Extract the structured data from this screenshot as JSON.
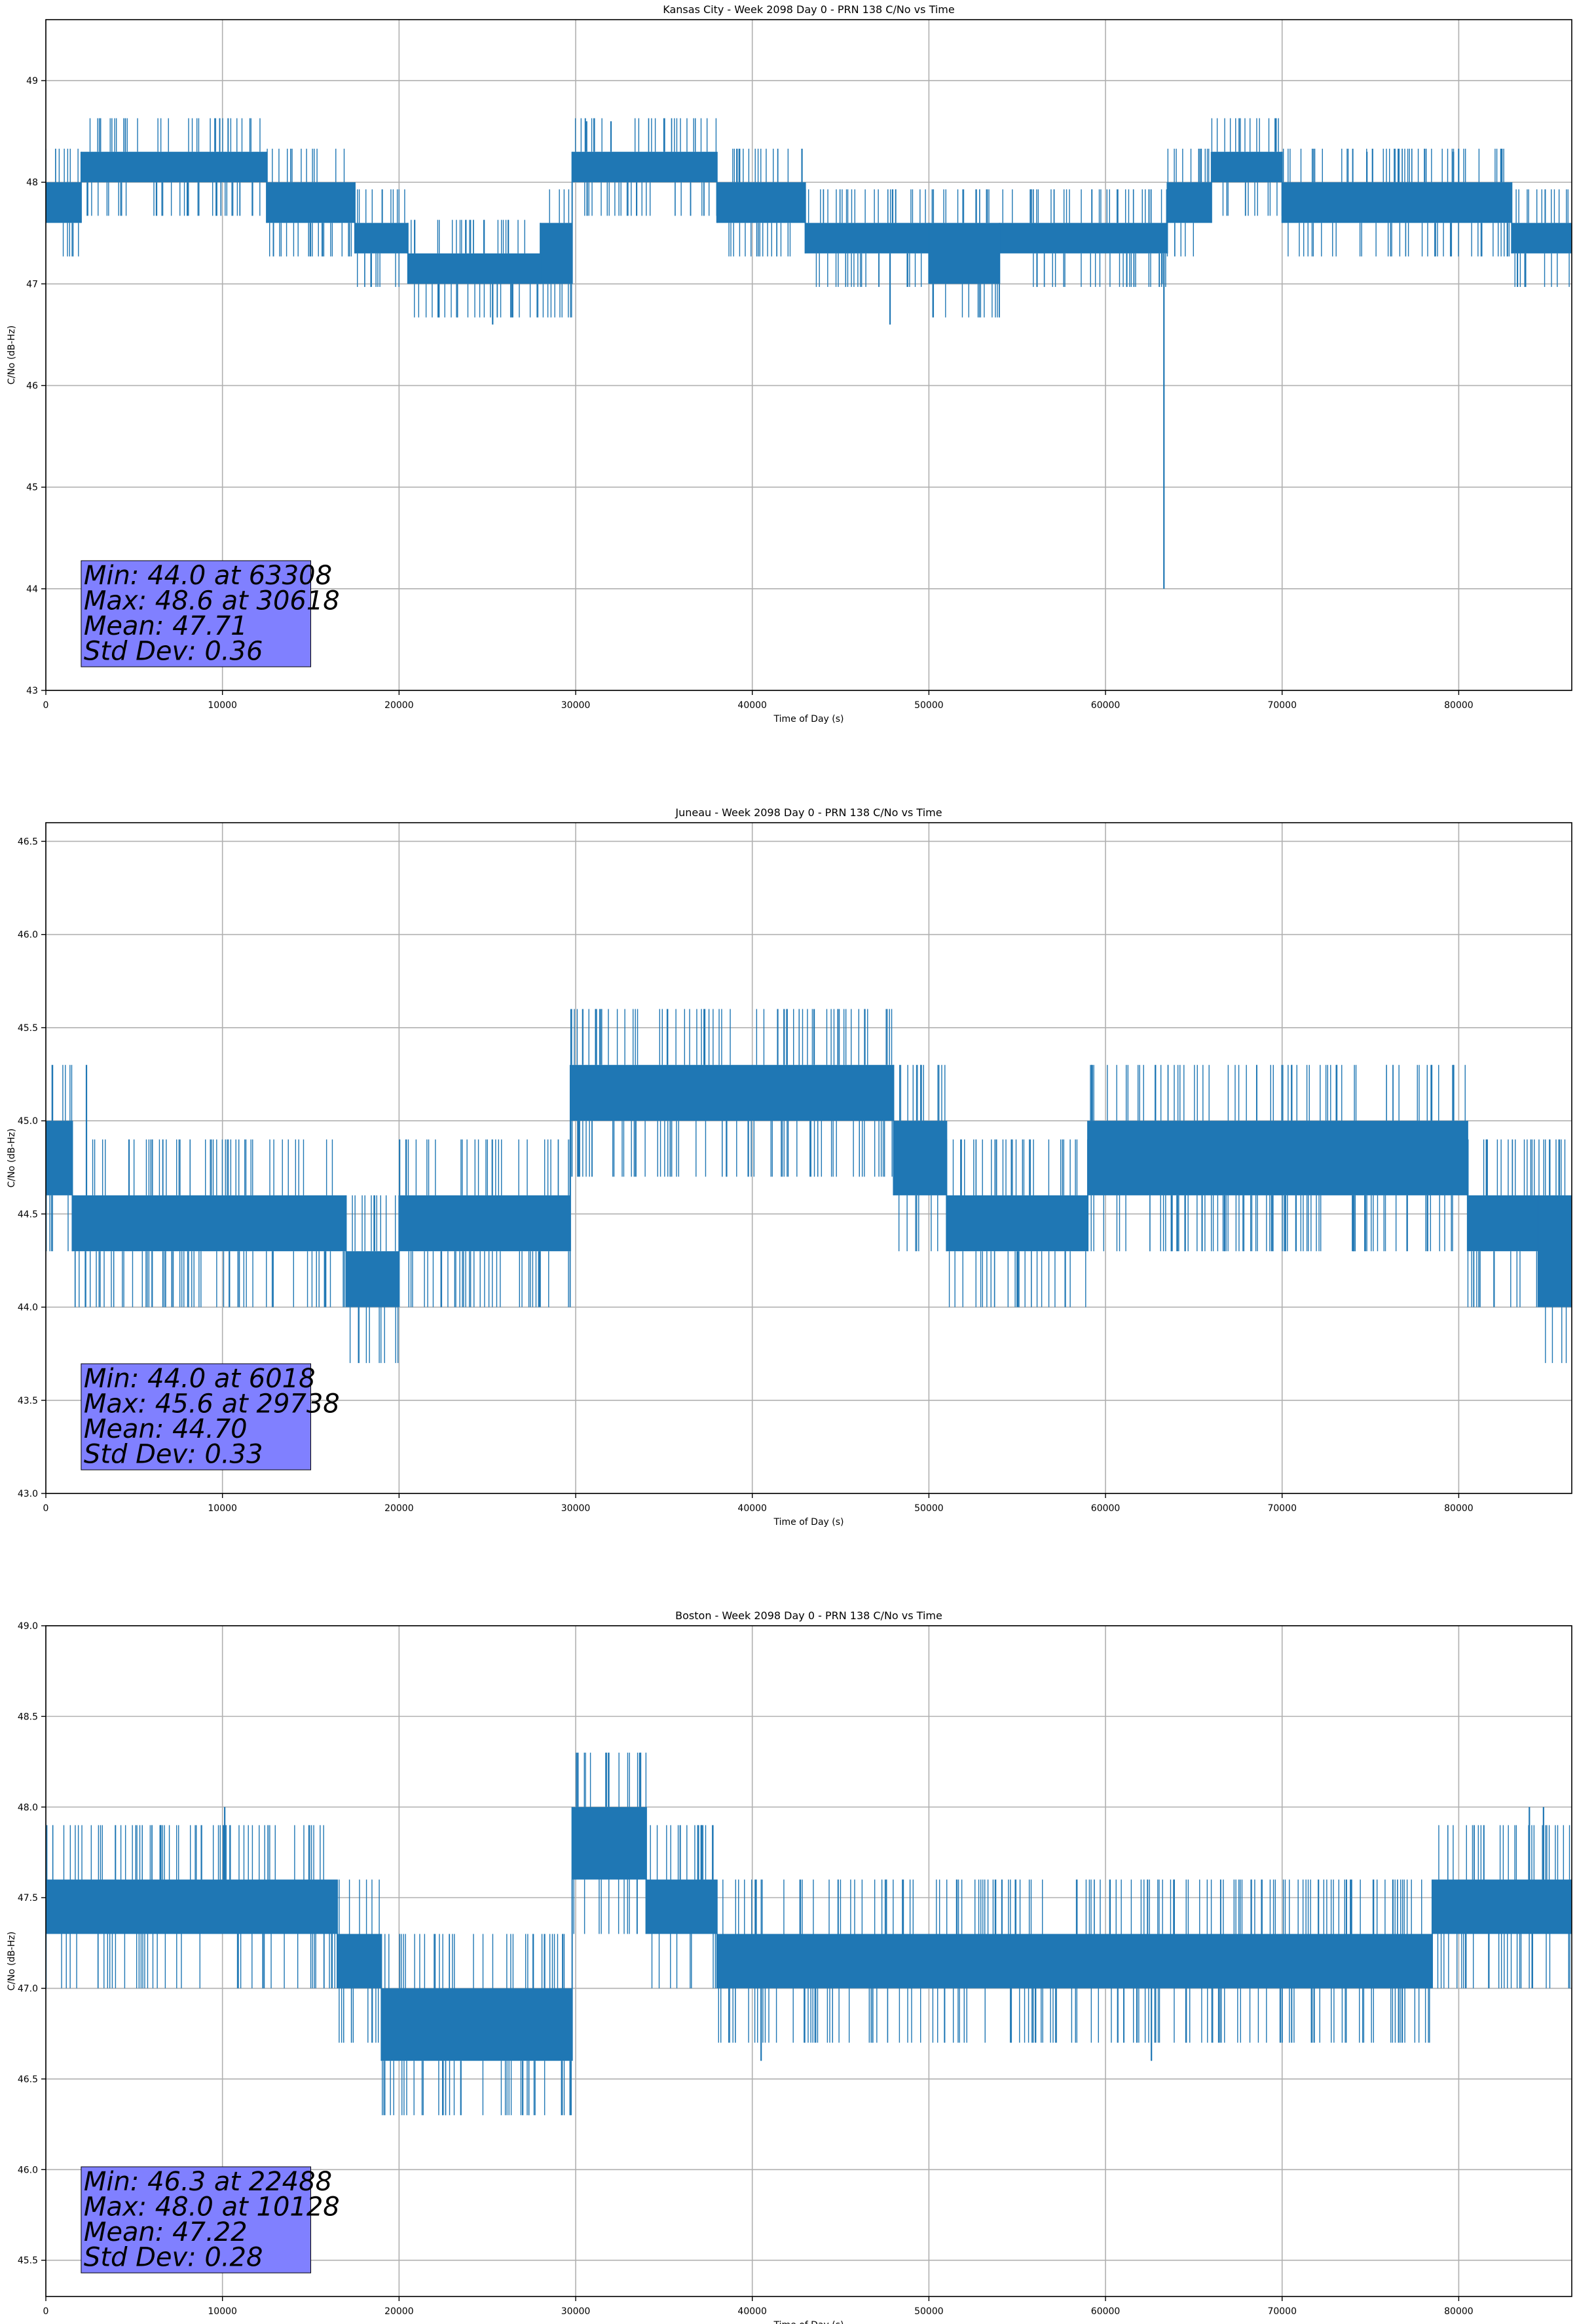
{
  "chart_data": [
    {
      "type": "line",
      "title": "Kansas City - Week 2098 Day 0 - PRN 138 C/No vs Time",
      "xlabel": "Time of Day (s)",
      "ylabel": "C/No (dB-Hz)",
      "xlim": [
        0,
        86400
      ],
      "ylim": [
        43,
        49.6
      ],
      "xticks": [
        0,
        10000,
        20000,
        30000,
        40000,
        50000,
        60000,
        70000,
        80000
      ],
      "yticks": [
        43,
        44,
        45,
        46,
        47,
        48,
        49
      ],
      "ytick_decimals": 0,
      "grid": true,
      "line_color": "#1f77b4",
      "stats_box_color": "#8080ff",
      "stats": [
        "Min: 44.0 at 63308",
        "Max: 48.6 at 30618",
        "Mean: 47.71",
        "Std Dev: 0.36"
      ],
      "bands": [
        {
          "x0": 0,
          "x1": 2000,
          "low": 47.6,
          "high": 48.0
        },
        {
          "x0": 2000,
          "x1": 12500,
          "low": 48.0,
          "high": 48.3
        },
        {
          "x0": 12500,
          "x1": 17500,
          "low": 47.6,
          "high": 48.0
        },
        {
          "x0": 17500,
          "x1": 20500,
          "low": 47.3,
          "high": 47.6
        },
        {
          "x0": 20500,
          "x1": 28000,
          "low": 47.0,
          "high": 47.3
        },
        {
          "x0": 28000,
          "x1": 29800,
          "low": 47.0,
          "high": 47.6
        },
        {
          "x0": 29800,
          "x1": 38000,
          "low": 48.0,
          "high": 48.3
        },
        {
          "x0": 38000,
          "x1": 43000,
          "low": 47.6,
          "high": 48.0
        },
        {
          "x0": 43000,
          "x1": 50000,
          "low": 47.3,
          "high": 47.6
        },
        {
          "x0": 50000,
          "x1": 54000,
          "low": 47.0,
          "high": 47.6
        },
        {
          "x0": 54000,
          "x1": 63500,
          "low": 47.3,
          "high": 47.6
        },
        {
          "x0": 63500,
          "x1": 66000,
          "low": 47.6,
          "high": 48.0
        },
        {
          "x0": 66000,
          "x1": 70000,
          "low": 48.0,
          "high": 48.3
        },
        {
          "x0": 70000,
          "x1": 83000,
          "low": 47.6,
          "high": 48.0
        },
        {
          "x0": 83000,
          "x1": 86400,
          "low": 47.3,
          "high": 47.6
        }
      ],
      "spikes": [
        {
          "x": 25300,
          "y": 46.6
        },
        {
          "x": 30618,
          "y": 48.6
        },
        {
          "x": 32000,
          "y": 48.6
        },
        {
          "x": 47800,
          "y": 46.6
        },
        {
          "x": 63308,
          "y": 44.0
        },
        {
          "x": 63200,
          "y": 47.0
        },
        {
          "x": 74800,
          "y": 48.3
        },
        {
          "x": 79700,
          "y": 48.3
        }
      ]
    },
    {
      "type": "line",
      "title": "Juneau - Week 2098 Day 0 - PRN 138 C/No vs Time",
      "xlabel": "Time of Day (s)",
      "ylabel": "C/No (dB-Hz)",
      "xlim": [
        0,
        86400
      ],
      "ylim": [
        43.0,
        46.6
      ],
      "xticks": [
        0,
        10000,
        20000,
        30000,
        40000,
        50000,
        60000,
        70000,
        80000
      ],
      "yticks": [
        43.0,
        43.5,
        44.0,
        44.5,
        45.0,
        45.5,
        46.0,
        46.5
      ],
      "ytick_decimals": 1,
      "grid": true,
      "line_color": "#1f77b4",
      "stats_box_color": "#8080ff",
      "stats": [
        "Min: 44.0 at 6018",
        "Max: 45.6 at 29738",
        "Mean: 44.70",
        "Std Dev: 0.33"
      ],
      "bands": [
        {
          "x0": 0,
          "x1": 1500,
          "low": 44.6,
          "high": 45.0
        },
        {
          "x0": 1500,
          "x1": 17000,
          "low": 44.3,
          "high": 44.6
        },
        {
          "x0": 17000,
          "x1": 20000,
          "low": 44.0,
          "high": 44.3
        },
        {
          "x0": 20000,
          "x1": 29700,
          "low": 44.3,
          "high": 44.6
        },
        {
          "x0": 29700,
          "x1": 48000,
          "low": 45.0,
          "high": 45.3
        },
        {
          "x0": 48000,
          "x1": 51000,
          "low": 44.6,
          "high": 45.0
        },
        {
          "x0": 51000,
          "x1": 59000,
          "low": 44.3,
          "high": 44.6
        },
        {
          "x0": 59000,
          "x1": 80500,
          "low": 44.6,
          "high": 45.0
        },
        {
          "x0": 80500,
          "x1": 84500,
          "low": 44.3,
          "high": 44.6
        },
        {
          "x0": 84500,
          "x1": 86400,
          "low": 44.0,
          "high": 44.6
        }
      ],
      "spikes": [
        {
          "x": 2300,
          "y": 45.3
        },
        {
          "x": 6018,
          "y": 44.0
        },
        {
          "x": 29738,
          "y": 45.6
        },
        {
          "x": 30400,
          "y": 45.6
        },
        {
          "x": 41800,
          "y": 45.6
        },
        {
          "x": 43500,
          "y": 45.6
        },
        {
          "x": 55000,
          "y": 44.0
        },
        {
          "x": 82000,
          "y": 44.0
        }
      ]
    },
    {
      "type": "line",
      "title": "Boston - Week 2098 Day 0 - PRN 138 C/No vs Time",
      "xlabel": "Time of Day (s)",
      "ylabel": "C/No (dB-Hz)",
      "xlim": [
        0,
        86400
      ],
      "ylim": [
        45.3,
        49.0
      ],
      "xticks": [
        0,
        10000,
        20000,
        30000,
        40000,
        50000,
        60000,
        70000,
        80000
      ],
      "yticks": [
        45.5,
        46.0,
        46.5,
        47.0,
        47.5,
        48.0,
        48.5,
        49.0
      ],
      "ytick_decimals": 1,
      "grid": true,
      "line_color": "#1f77b4",
      "stats_box_color": "#8080ff",
      "stats": [
        "Min: 46.3 at 22488",
        "Max: 48.0 at 10128",
        "Mean: 47.22",
        "Std Dev: 0.28"
      ],
      "bands": [
        {
          "x0": 0,
          "x1": 16500,
          "low": 47.3,
          "high": 47.6
        },
        {
          "x0": 16500,
          "x1": 19000,
          "low": 47.0,
          "high": 47.3
        },
        {
          "x0": 19000,
          "x1": 29800,
          "low": 46.6,
          "high": 47.0
        },
        {
          "x0": 29800,
          "x1": 34000,
          "low": 47.6,
          "high": 48.0
        },
        {
          "x0": 34000,
          "x1": 38000,
          "low": 47.3,
          "high": 47.6
        },
        {
          "x0": 38000,
          "x1": 78500,
          "low": 47.0,
          "high": 47.3
        },
        {
          "x0": 78500,
          "x1": 86400,
          "low": 47.3,
          "high": 47.6
        }
      ],
      "spikes": [
        {
          "x": 10128,
          "y": 48.0
        },
        {
          "x": 22488,
          "y": 46.3
        },
        {
          "x": 23500,
          "y": 46.3
        },
        {
          "x": 27000,
          "y": 46.3
        },
        {
          "x": 40500,
          "y": 46.6
        },
        {
          "x": 62600,
          "y": 46.6
        },
        {
          "x": 84000,
          "y": 48.0
        },
        {
          "x": 84800,
          "y": 48.0
        }
      ]
    }
  ]
}
